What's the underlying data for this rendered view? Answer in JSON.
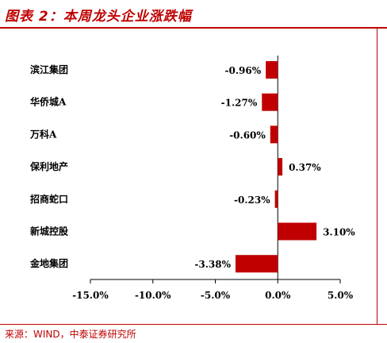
{
  "header": {
    "title": "图表 2：本周龙头企业涨跌幅"
  },
  "footer": {
    "source": "来源：WIND，中泰证券研究所"
  },
  "colors": {
    "bar": "#c00000",
    "axis": "#000000",
    "accent": "#c00000"
  },
  "chart_data": {
    "type": "bar",
    "orientation": "horizontal",
    "title": "",
    "xlabel": "",
    "ylabel": "",
    "categories": [
      "滨江集团",
      "华侨城A",
      "万科A",
      "保利地产",
      "招商蛇口",
      "新城控股",
      "金地集团"
    ],
    "values": [
      -0.96,
      -1.27,
      -0.6,
      0.37,
      -0.23,
      3.1,
      -3.38
    ],
    "value_labels": [
      "-0.96%",
      "-1.27%",
      "-0.60%",
      "0.37%",
      "-0.23%",
      "3.10%",
      "-3.38%"
    ],
    "xlim": [
      -15,
      5
    ],
    "xticks": [
      -15,
      -10,
      -5,
      0,
      5
    ],
    "xtick_labels": [
      "-15.0%",
      "-10.0%",
      "-5.0%",
      "0.0%",
      "5.0%"
    ],
    "grid": false,
    "legend": "none"
  }
}
